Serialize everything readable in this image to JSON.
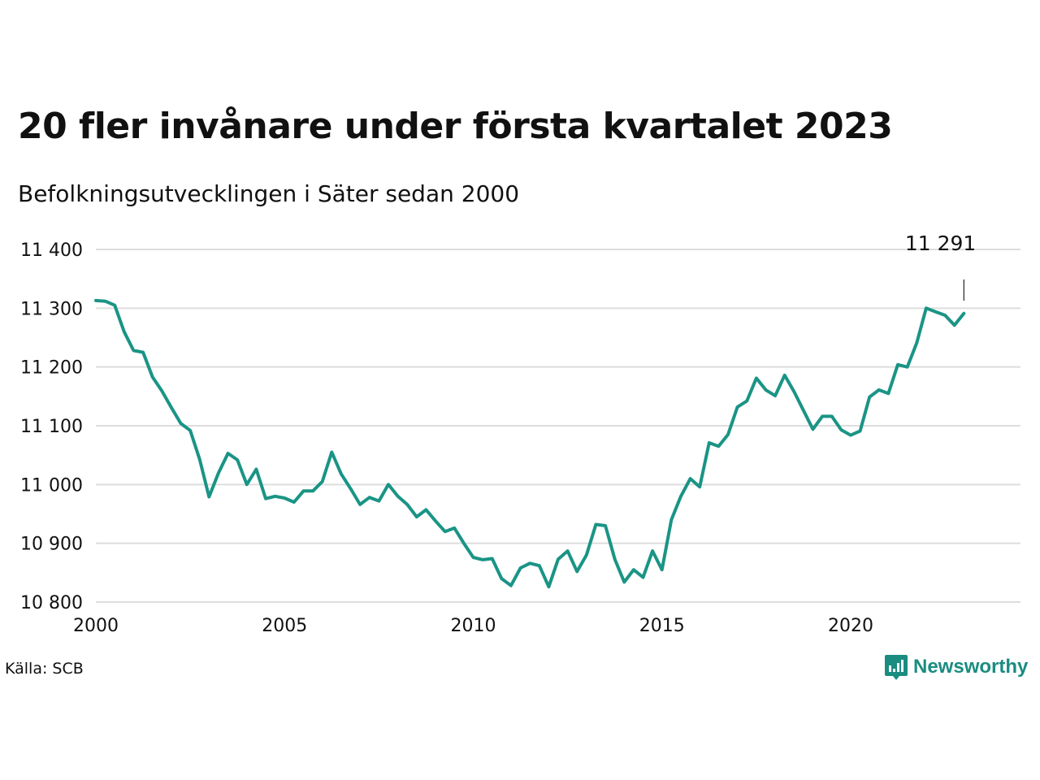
{
  "title": "20 fler invånare under första kvartalet 2023",
  "subtitle": "Befolkningsutvecklingen i Säter sedan 2000",
  "source": "Källa: SCB",
  "brand": {
    "name": "Newsworthy",
    "icon": "newsworthy-logo-icon",
    "color": "#1a8c80"
  },
  "chart_data": {
    "type": "line",
    "title": "20 fler invånare under första kvartalet 2023",
    "subtitle": "Befolkningsutvecklingen i Säter sedan 2000",
    "xlabel": "",
    "ylabel": "",
    "xlim": [
      2000,
      2024.5
    ],
    "ylim": [
      10800,
      11400
    ],
    "xticks": [
      2000,
      2005,
      2010,
      2015,
      2020
    ],
    "xtick_labels": [
      "2000",
      "2005",
      "2010",
      "2015",
      "2020"
    ],
    "yticks": [
      10800,
      10900,
      11000,
      11100,
      11200,
      11300,
      11400
    ],
    "ytick_labels": [
      "10 800",
      "10 900",
      "11 000",
      "11 100",
      "11 200",
      "11 300",
      "11 400"
    ],
    "grid": "horizontal",
    "line_color": "#1a9485",
    "annotation": {
      "label": "11 291",
      "x": 2023.0
    },
    "series": [
      {
        "x_start": 2000.0,
        "x_step": 0.25,
        "values": [
          11313,
          11312,
          11305,
          11260,
          11228,
          11225,
          11183,
          11159,
          11131,
          11104,
          11092,
          11043,
          10979,
          11020,
          11053,
          11042,
          11000,
          11026,
          10976,
          10980,
          10977,
          10970,
          10989,
          10989,
          11005,
          11055,
          11018,
          10993,
          10966,
          10978,
          10972,
          11000,
          10980,
          10966,
          10945,
          10957,
          10938,
          10920,
          10926,
          10900,
          10876,
          10872,
          10874,
          10840,
          10828,
          10858,
          10866,
          10862,
          10826,
          10873,
          10887,
          10852,
          10880,
          10932,
          10930,
          10873,
          10834,
          10855,
          10842,
          10887,
          10855,
          10940,
          10980,
          11010,
          10996,
          11071,
          11065,
          11085,
          11132,
          11142,
          11181,
          11161,
          11151,
          11186,
          11158,
          11126,
          11094,
          11116,
          11116,
          11093,
          11084,
          11091,
          11149,
          11161,
          11155,
          11204,
          11200,
          11241,
          11300,
          11294,
          11288,
          11271,
          11291
        ]
      }
    ]
  }
}
